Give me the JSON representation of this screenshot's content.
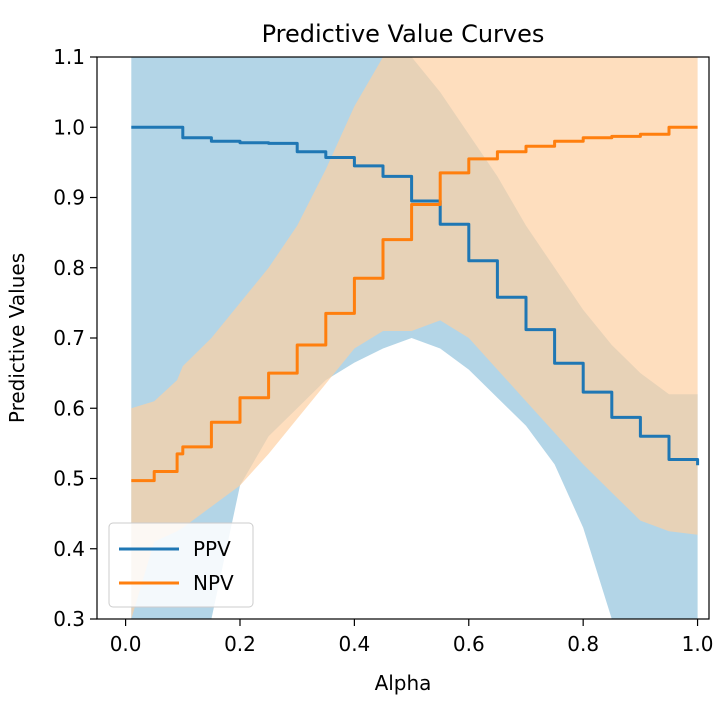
{
  "chart_data": {
    "type": "line",
    "title": "Predictive Value Curves",
    "xlabel": "Alpha",
    "ylabel": "Predictive Values",
    "xlim": [
      -0.05,
      1.02
    ],
    "ylim": [
      0.3,
      1.1
    ],
    "xticks": [
      "0.0",
      "0.2",
      "0.4",
      "0.6",
      "0.8",
      "1.0"
    ],
    "yticks": [
      "0.3",
      "0.4",
      "0.5",
      "0.6",
      "0.7",
      "0.8",
      "0.9",
      "1.0",
      "1.1"
    ],
    "legend_position": "lower-left",
    "grid": false,
    "x": [
      0.01,
      0.05,
      0.09,
      0.1,
      0.15,
      0.2,
      0.25,
      0.3,
      0.35,
      0.4,
      0.45,
      0.5,
      0.55,
      0.6,
      0.65,
      0.7,
      0.75,
      0.8,
      0.85,
      0.9,
      0.95,
      1.0
    ],
    "series": [
      {
        "name": "PPV",
        "color": "#1f77b4",
        "band_color": "#a6cee3",
        "values": [
          1.0,
          1.0,
          1.0,
          0.985,
          0.98,
          0.978,
          0.977,
          0.965,
          0.957,
          0.945,
          0.93,
          0.895,
          0.862,
          0.81,
          0.758,
          0.712,
          0.664,
          0.623,
          0.587,
          0.56,
          0.527,
          0.519
        ],
        "lower": [
          0.3,
          0.3,
          0.3,
          0.3,
          0.3,
          0.49,
          0.56,
          0.6,
          0.64,
          0.665,
          0.685,
          0.7,
          0.685,
          0.655,
          0.615,
          0.575,
          0.52,
          0.43,
          0.3,
          0.3,
          0.3,
          0.3
        ],
        "upper": [
          1.1,
          1.1,
          1.1,
          1.1,
          1.1,
          1.1,
          1.1,
          1.1,
          1.1,
          1.1,
          1.1,
          1.1,
          1.05,
          0.99,
          0.93,
          0.86,
          0.8,
          0.74,
          0.69,
          0.65,
          0.62,
          0.62
        ]
      },
      {
        "name": "NPV",
        "color": "#ff7f0e",
        "band_color": "#fdd0a2",
        "values": [
          0.497,
          0.51,
          0.535,
          0.545,
          0.58,
          0.615,
          0.65,
          0.69,
          0.735,
          0.785,
          0.84,
          0.89,
          0.935,
          0.955,
          0.965,
          0.973,
          0.98,
          0.985,
          0.987,
          0.99,
          1.0,
          1.0
        ],
        "lower": [
          0.3,
          0.41,
          0.425,
          0.43,
          0.46,
          0.49,
          0.535,
          0.585,
          0.635,
          0.685,
          0.71,
          0.71,
          0.725,
          0.7,
          0.655,
          0.61,
          0.565,
          0.52,
          0.48,
          0.44,
          0.425,
          0.42
        ],
        "upper": [
          0.6,
          0.61,
          0.64,
          0.66,
          0.7,
          0.75,
          0.8,
          0.86,
          0.94,
          1.03,
          1.1,
          1.1,
          1.1,
          1.1,
          1.1,
          1.1,
          1.1,
          1.1,
          1.1,
          1.1,
          1.1,
          1.1
        ]
      }
    ]
  }
}
